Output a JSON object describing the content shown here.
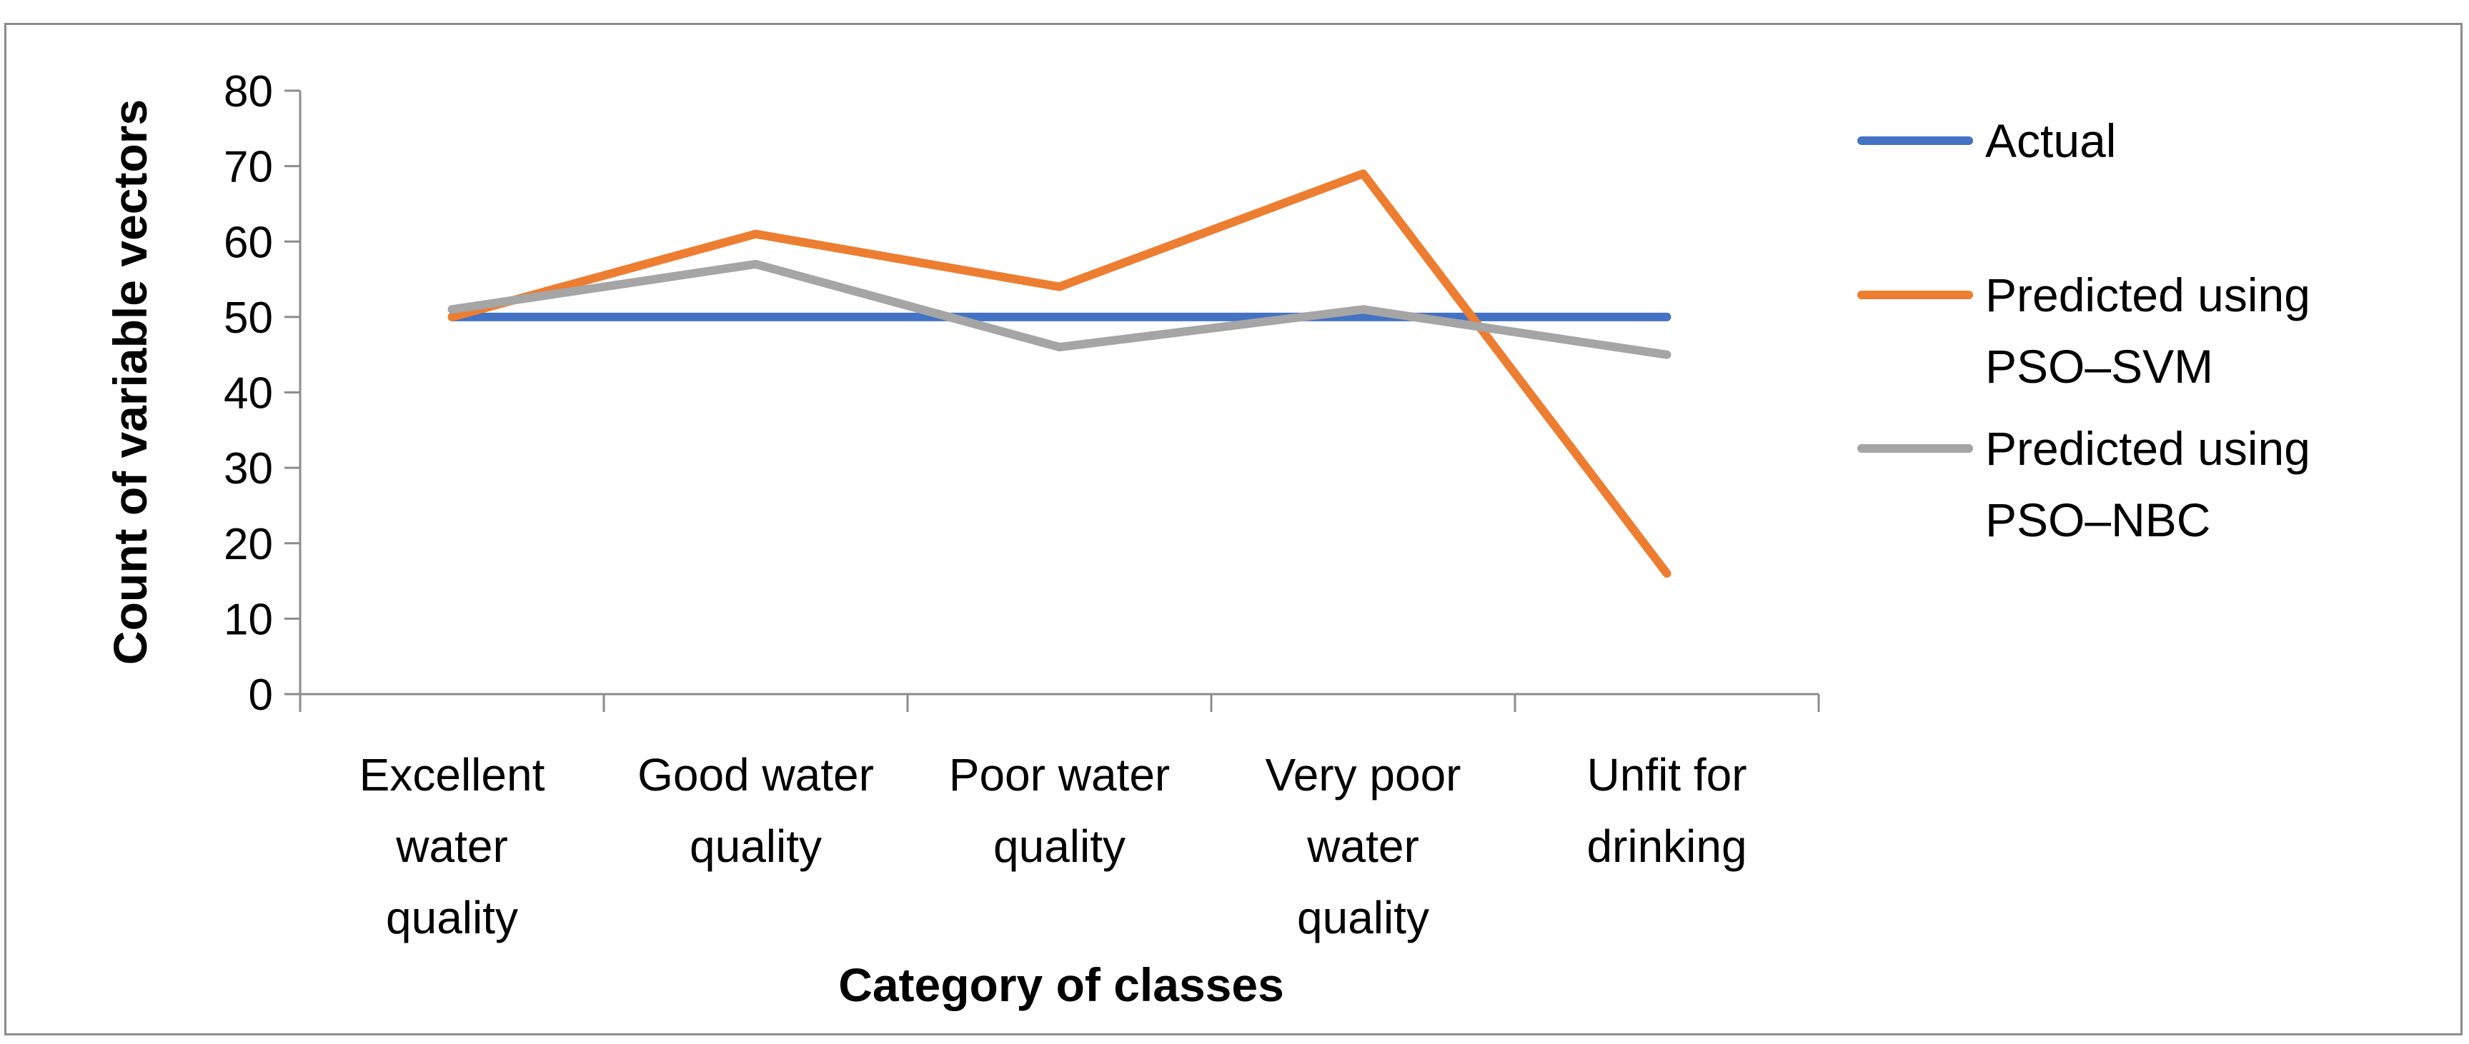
{
  "chart_data": {
    "type": "line",
    "title": "",
    "xlabel": "Category of classes",
    "ylabel": "Count of variable vectors",
    "ylim": [
      0,
      80
    ],
    "yticks": [
      0,
      10,
      20,
      30,
      40,
      50,
      60,
      70,
      80
    ],
    "grid": false,
    "legend_position": "right",
    "categories": [
      [
        "Excellent",
        "water",
        "quality"
      ],
      [
        "Good water",
        "quality"
      ],
      [
        "Poor water",
        "quality"
      ],
      [
        "Very poor",
        "water",
        "quality"
      ],
      [
        "Unfit for",
        "drinking"
      ]
    ],
    "series": [
      {
        "name": [
          "Actual"
        ],
        "color": "#4472C4",
        "values": [
          50,
          50,
          50,
          50,
          50
        ]
      },
      {
        "name": [
          "Predicted using",
          "PSO–SVM"
        ],
        "color": "#ED7D31",
        "values": [
          50,
          61,
          54,
          69,
          16
        ]
      },
      {
        "name": [
          "Predicted using",
          "PSO–NBC"
        ],
        "color": "#A5A5A5",
        "values": [
          51,
          57,
          46,
          51,
          45
        ]
      }
    ]
  }
}
